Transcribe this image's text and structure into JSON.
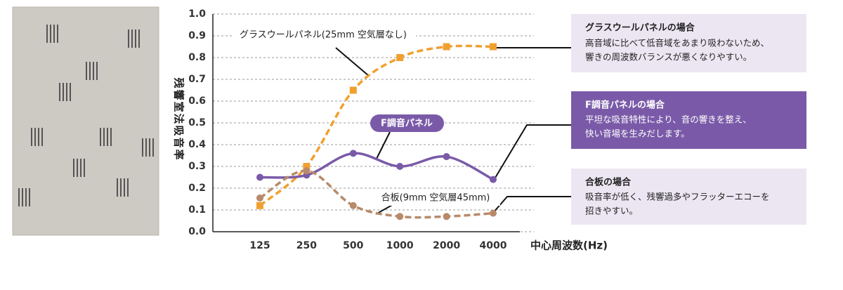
{
  "chart_data": {
    "type": "line",
    "x_label": "中心周波数(Hz)",
    "y_label": "残響室法吸音率",
    "categories": [
      "125",
      "250",
      "500",
      "1000",
      "2000",
      "4000"
    ],
    "ylim": [
      0,
      1
    ],
    "yticks": [
      {
        "value": 0,
        "label": "0.0"
      },
      0.1,
      0.2,
      0.3,
      0.4,
      0.5,
      0.6,
      0.7,
      0.8,
      0.9,
      {
        "value": 1,
        "label": "1.0"
      }
    ],
    "grid": true,
    "series": [
      {
        "name": "グラスウールパネル(25mm 空気層なし)",
        "color": "#f0a030",
        "dashed": true,
        "marker": "square",
        "values": [
          0.12,
          0.3,
          0.65,
          0.8,
          0.85,
          0.85
        ]
      },
      {
        "name": "F調音パネル",
        "color": "#7a5aa8",
        "dashed": false,
        "marker": "circle",
        "values": [
          0.25,
          0.26,
          0.36,
          0.3,
          0.345,
          0.24
        ]
      },
      {
        "name": "合板(9mm 空気層45mm)",
        "color": "#b88a6a",
        "dashed": true,
        "marker": "circle",
        "values": [
          0.155,
          0.28,
          0.12,
          0.07,
          0.07,
          0.085
        ]
      }
    ]
  },
  "notes": [
    {
      "title": "グラスウールパネルの場合",
      "lines": [
        "高音域に比べて低音域をあまり吸わないため、",
        "響きの周波数バランスが悪くなりやすい。"
      ]
    },
    {
      "title": "F調音パネルの場合",
      "lines": [
        "平坦な吸音特性により、音の響きを整え、",
        "快い音場を生みだします。"
      ]
    },
    {
      "title": "合板の場合",
      "lines": [
        "吸音率が低く、残響過多やフラッターエコーを",
        "招きやすい。"
      ]
    }
  ]
}
